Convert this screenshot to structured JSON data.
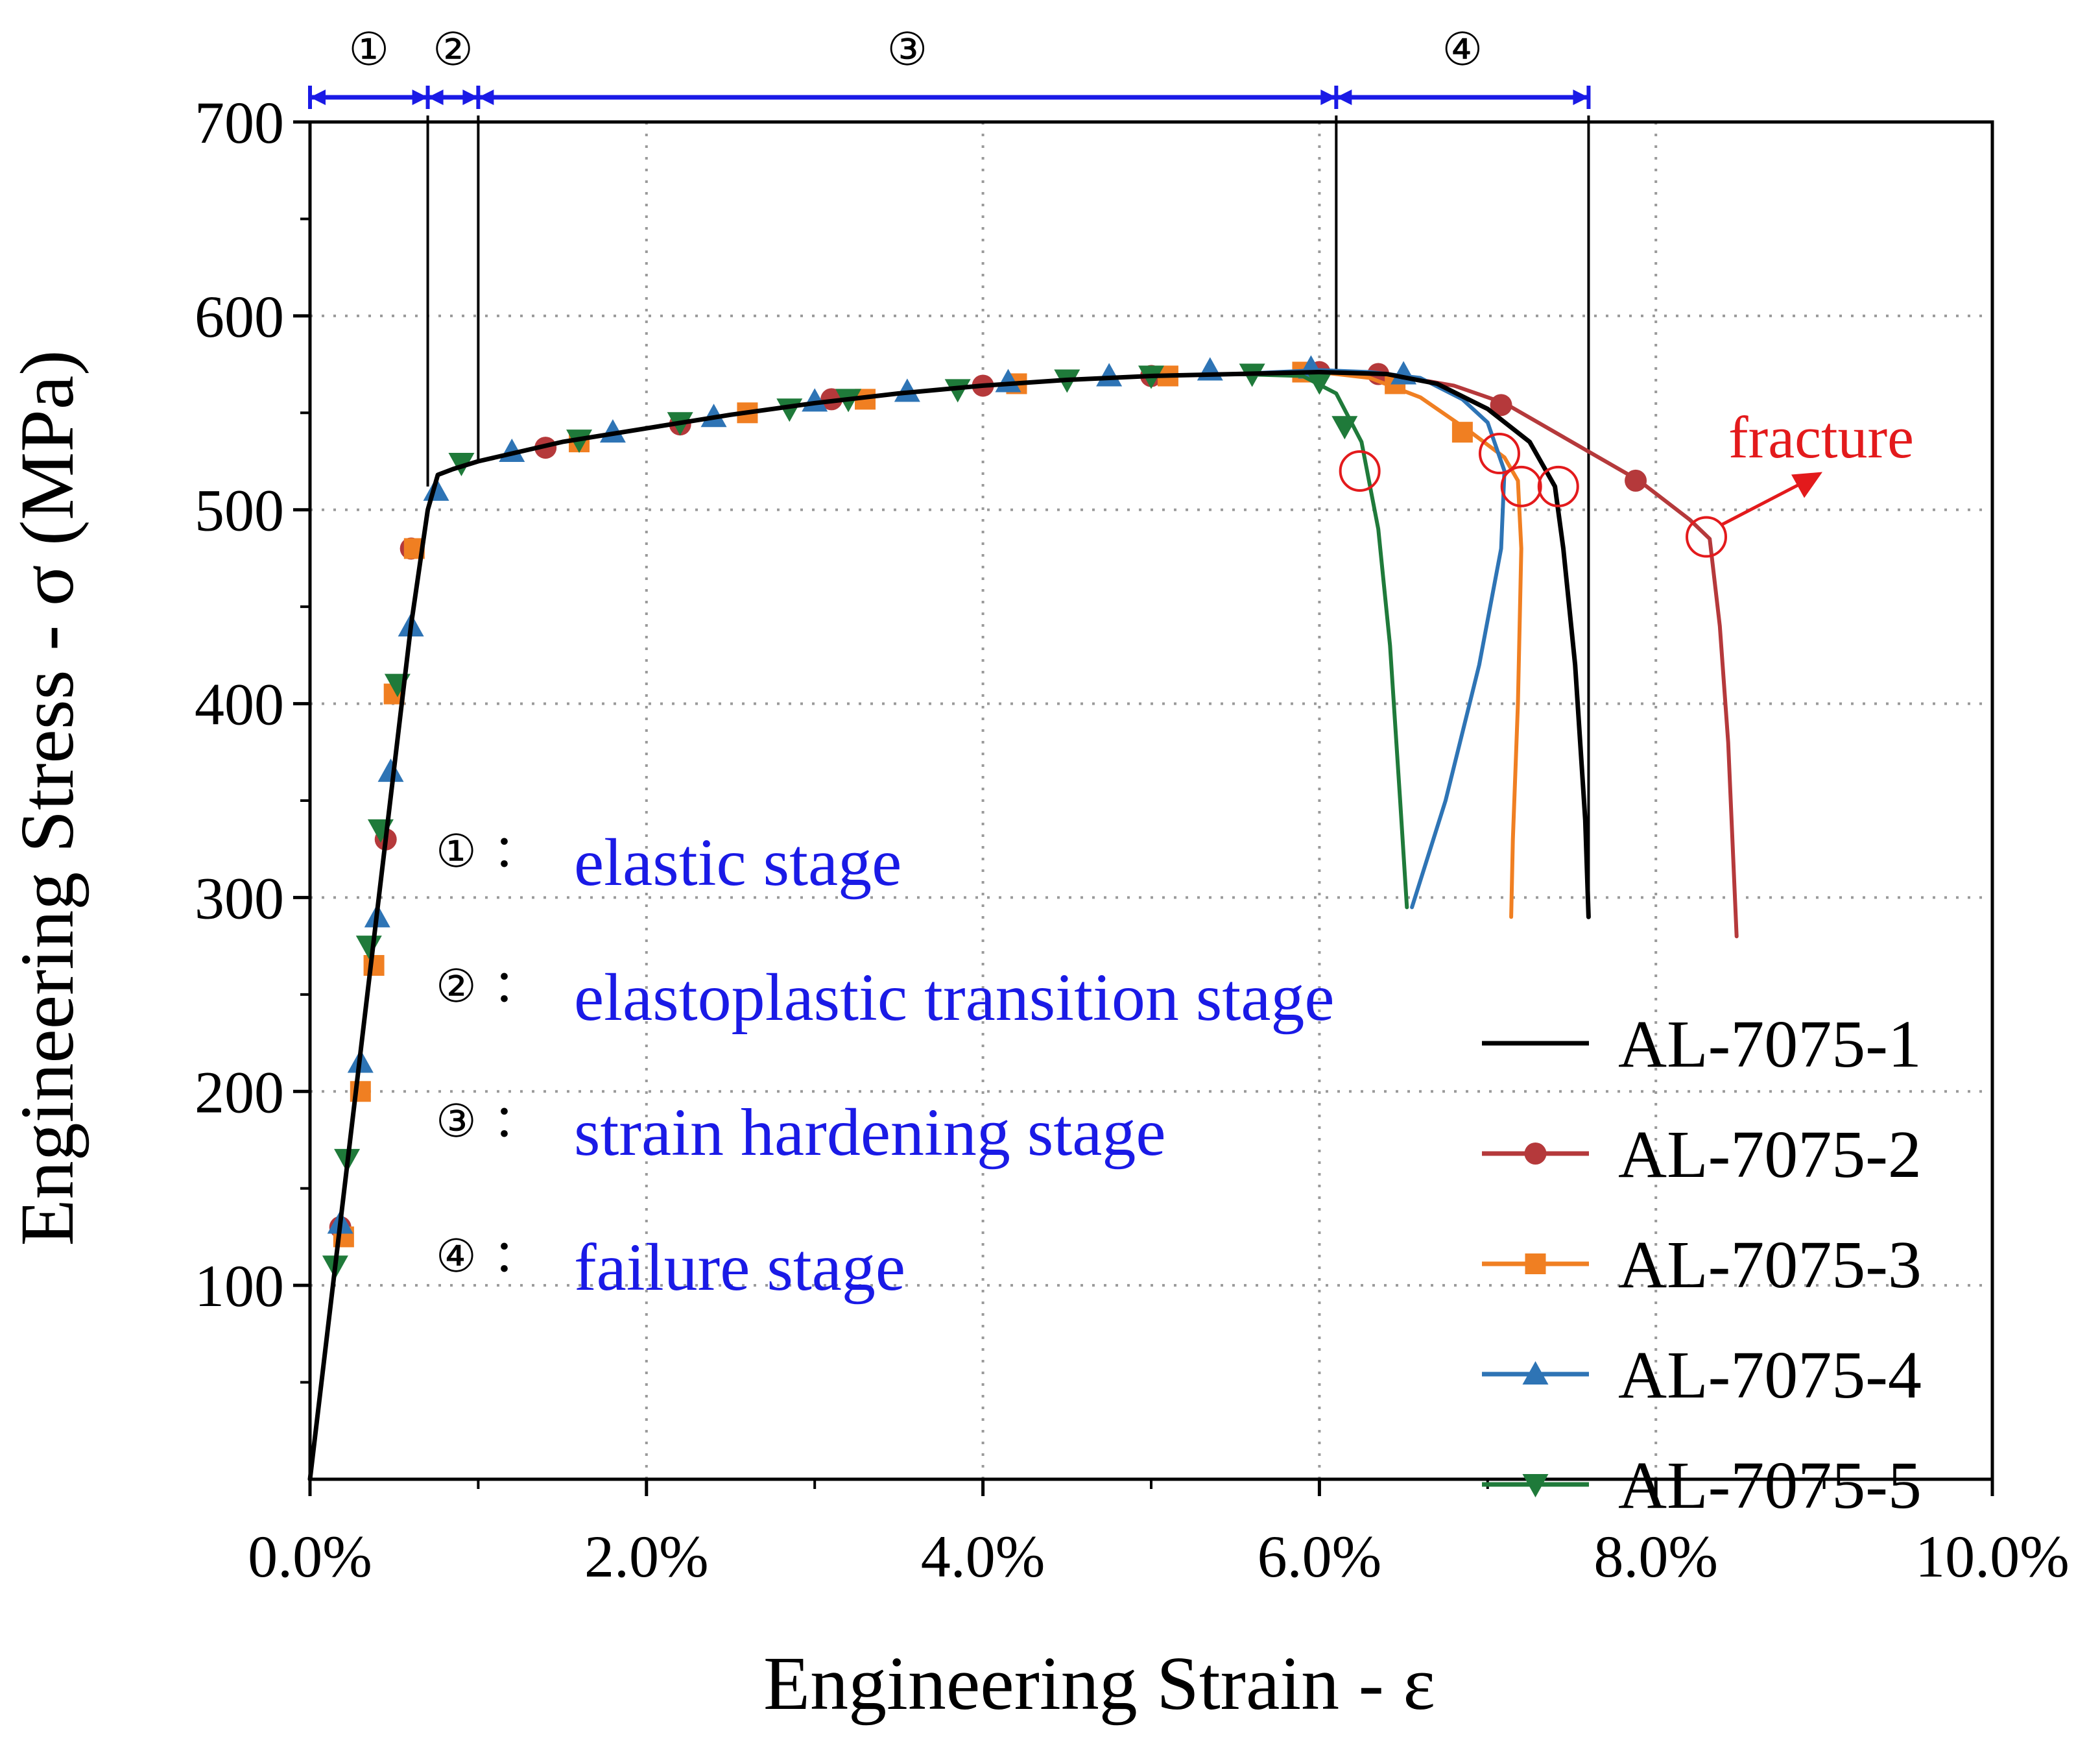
{
  "chart_data": {
    "type": "line",
    "xlabel": "Engineering Strain - ε",
    "ylabel": "Engineering Stress - σ (MPa)",
    "xlim": [
      0,
      10
    ],
    "ylim": [
      0,
      700
    ],
    "x_ticks": [
      0,
      2,
      4,
      6,
      8,
      10
    ],
    "x_tick_labels": [
      "0.0%",
      "2.0%",
      "4.0%",
      "6.0%",
      "8.0%",
      "10.0%"
    ],
    "y_ticks": [
      100,
      200,
      300,
      400,
      500,
      600,
      700
    ],
    "y_tick_labels": [
      "100",
      "200",
      "300",
      "400",
      "500",
      "600",
      "700"
    ],
    "grid": true,
    "legend_position": "bottom-right",
    "series": [
      {
        "name": "AL-7075-1",
        "color": "#000000",
        "marker": "none",
        "x": [
          0,
          0.15,
          0.3,
          0.45,
          0.6,
          0.7,
          0.76,
          0.85,
          1.0,
          1.5,
          2.0,
          2.5,
          3.0,
          3.5,
          4.0,
          4.5,
          5.0,
          5.5,
          6.0,
          6.4,
          6.7,
          7.0,
          7.25,
          7.4,
          7.45,
          7.52,
          7.58,
          7.6
        ],
        "y": [
          0,
          110,
          220,
          330,
          440,
          500,
          518,
          521,
          525,
          535,
          542,
          549,
          555,
          560,
          564,
          567,
          569,
          570,
          571,
          570,
          565,
          552,
          535,
          512,
          480,
          420,
          340,
          290
        ]
      },
      {
        "name": "AL-7075-2",
        "color": "#b5393b",
        "marker": "circle",
        "x": [
          0,
          0.15,
          0.3,
          0.45,
          0.6,
          0.7,
          0.76,
          0.85,
          1.0,
          1.5,
          2.0,
          2.5,
          3.0,
          3.5,
          4.0,
          4.5,
          5.0,
          5.5,
          6.0,
          6.4,
          6.8,
          7.1,
          7.5,
          7.9,
          8.2,
          8.32,
          8.38,
          8.43,
          8.46,
          8.48
        ],
        "y": [
          0,
          110,
          220,
          330,
          440,
          500,
          518,
          521,
          525,
          535,
          542,
          549,
          555,
          560,
          564,
          567,
          569,
          570,
          571,
          570,
          564,
          555,
          535,
          515,
          495,
          485,
          440,
          380,
          320,
          280
        ],
        "markers_x": [
          0.18,
          0.45,
          0.6,
          1.4,
          2.2,
          3.1,
          4.0,
          5.0,
          6.0,
          6.35,
          7.08,
          7.88
        ],
        "markers_y": [
          130,
          330,
          480,
          532,
          544,
          557,
          564,
          569,
          571,
          570,
          554,
          515
        ]
      },
      {
        "name": "AL-7075-3",
        "color": "#f07f22",
        "marker": "square",
        "x": [
          0,
          0.15,
          0.3,
          0.45,
          0.6,
          0.7,
          0.76,
          0.85,
          1.0,
          1.5,
          2.0,
          2.5,
          3.0,
          3.5,
          4.0,
          4.5,
          5.0,
          5.5,
          6.0,
          6.3,
          6.6,
          6.9,
          7.1,
          7.18,
          7.2,
          7.18,
          7.15,
          7.14
        ],
        "y": [
          0,
          110,
          220,
          330,
          440,
          500,
          518,
          521,
          525,
          535,
          542,
          549,
          555,
          560,
          564,
          567,
          569,
          570,
          571,
          568,
          558,
          540,
          527,
          515,
          480,
          400,
          330,
          290
        ],
        "markers_x": [
          0.2,
          0.3,
          0.38,
          0.5,
          0.62,
          1.6,
          2.6,
          3.3,
          4.2,
          5.1,
          5.9,
          6.45,
          6.85
        ],
        "markers_y": [
          125,
          200,
          265,
          405,
          480,
          535,
          550,
          557,
          565,
          569,
          571,
          565,
          540
        ]
      },
      {
        "name": "AL-7075-4",
        "color": "#2e74b5",
        "marker": "triangle-up",
        "x": [
          0,
          0.15,
          0.3,
          0.45,
          0.6,
          0.7,
          0.76,
          0.85,
          1.0,
          1.5,
          2.0,
          2.5,
          3.0,
          3.5,
          4.0,
          4.5,
          5.0,
          5.5,
          6.0,
          6.3,
          6.6,
          6.85,
          7.0,
          7.1,
          7.08,
          6.95,
          6.75,
          6.55
        ],
        "y": [
          0,
          110,
          220,
          330,
          440,
          500,
          518,
          521,
          525,
          535,
          542,
          549,
          555,
          560,
          564,
          567,
          569,
          570,
          572,
          571,
          568,
          557,
          545,
          520,
          480,
          420,
          350,
          295
        ],
        "markers_x": [
          0.18,
          0.3,
          0.4,
          0.48,
          0.6,
          0.75,
          1.2,
          1.8,
          2.4,
          3.0,
          3.55,
          4.15,
          4.75,
          5.35,
          5.95,
          6.5
        ],
        "markers_y": [
          132,
          215,
          290,
          365,
          440,
          510,
          530,
          540,
          548,
          556,
          561,
          566,
          569,
          572,
          573,
          570
        ]
      },
      {
        "name": "AL-7075-5",
        "color": "#1f7a3a",
        "marker": "triangle-down",
        "x": [
          0,
          0.15,
          0.3,
          0.45,
          0.6,
          0.7,
          0.76,
          0.85,
          1.0,
          1.5,
          2.0,
          2.5,
          3.0,
          3.5,
          4.0,
          4.5,
          5.0,
          5.5,
          5.9,
          6.1,
          6.25,
          6.35,
          6.42,
          6.48,
          6.52
        ],
        "y": [
          0,
          110,
          220,
          330,
          440,
          500,
          518,
          521,
          525,
          535,
          542,
          549,
          555,
          560,
          564,
          567,
          569,
          570,
          569,
          560,
          535,
          490,
          430,
          350,
          295
        ],
        "markers_x": [
          0.15,
          0.22,
          0.35,
          0.42,
          0.52,
          0.9,
          1.6,
          2.2,
          2.85,
          3.2,
          3.85,
          4.5,
          5.0,
          5.6,
          6.0,
          6.15
        ],
        "markers_y": [
          110,
          165,
          275,
          335,
          410,
          524,
          536,
          545,
          552,
          557,
          562,
          567,
          569,
          570,
          566,
          543
        ]
      }
    ],
    "fracture_points": [
      {
        "x": 6.24,
        "y": 520
      },
      {
        "x": 7.07,
        "y": 529
      },
      {
        "x": 7.2,
        "y": 512
      },
      {
        "x": 7.42,
        "y": 512
      },
      {
        "x": 8.3,
        "y": 486
      }
    ],
    "fracture_label": "fracture",
    "stage_boundaries": [
      0,
      0.7,
      1.0,
      6.1,
      7.6
    ],
    "stage_markers": [
      "①",
      "②",
      "③",
      "④"
    ],
    "stage_legend": [
      {
        "symbol": "①",
        "sep": "：",
        "text": "elastic stage"
      },
      {
        "symbol": "②",
        "sep": "：",
        "text": "elastoplastic transition stage"
      },
      {
        "symbol": "③",
        "sep": "：",
        "text": "strain hardening stage"
      },
      {
        "symbol": "④",
        "sep": "：",
        "text": "failure stage"
      }
    ],
    "stage_arrow_color": "#1a1ae6",
    "fracture_color": "#e31a1c"
  }
}
